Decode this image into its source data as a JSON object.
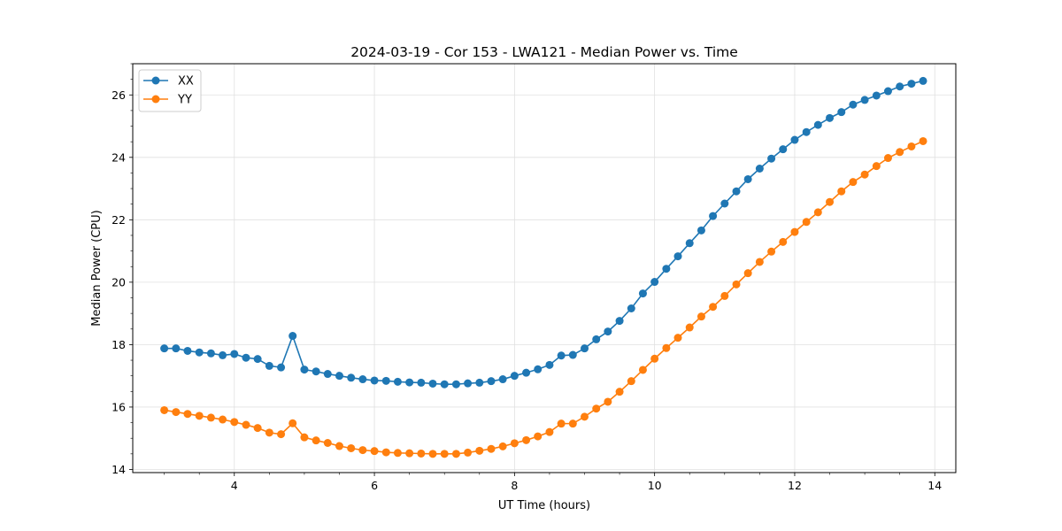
{
  "chart_data": {
    "type": "line",
    "title": "2024-03-19 - Cor 153 - LWA121 - Median Power vs. Time",
    "xlabel": "UT Time (hours)",
    "ylabel": "Median Power (CPU)",
    "xlim": [
      2.55,
      14.3
    ],
    "ylim": [
      13.9,
      27.0
    ],
    "xticks": [
      4,
      6,
      8,
      10,
      12,
      14
    ],
    "yticks": [
      14,
      16,
      18,
      20,
      22,
      24,
      26
    ],
    "grid": true,
    "legend_position": "top-left",
    "x": [
      3.0,
      3.167,
      3.333,
      3.5,
      3.667,
      3.833,
      4.0,
      4.167,
      4.333,
      4.5,
      4.667,
      4.833,
      5.0,
      5.167,
      5.333,
      5.5,
      5.667,
      5.833,
      6.0,
      6.167,
      6.333,
      6.5,
      6.667,
      6.833,
      7.0,
      7.167,
      7.333,
      7.5,
      7.667,
      7.833,
      8.0,
      8.167,
      8.333,
      8.5,
      8.667,
      8.833,
      9.0,
      9.167,
      9.333,
      9.5,
      9.667,
      9.833,
      10.0,
      10.167,
      10.333,
      10.5,
      10.667,
      10.833,
      11.0,
      11.167,
      11.333,
      11.5,
      11.667,
      11.833,
      12.0,
      12.167,
      12.333,
      12.5,
      12.667,
      12.833,
      13.0,
      13.167,
      13.333,
      13.5,
      13.667,
      13.833
    ],
    "series": [
      {
        "name": "XX",
        "color": "#1f77b4",
        "values": [
          17.88,
          17.88,
          17.8,
          17.75,
          17.72,
          17.66,
          17.7,
          17.58,
          17.54,
          17.32,
          17.27,
          18.28,
          17.2,
          17.14,
          17.06,
          17.0,
          16.94,
          16.89,
          16.85,
          16.84,
          16.81,
          16.79,
          16.78,
          16.75,
          16.73,
          16.73,
          16.76,
          16.78,
          16.83,
          16.89,
          17.0,
          17.1,
          17.21,
          17.35,
          17.65,
          17.67,
          17.88,
          18.17,
          18.42,
          18.76,
          19.16,
          19.64,
          20.01,
          20.43,
          20.83,
          21.25,
          21.66,
          22.12,
          22.52,
          22.91,
          23.3,
          23.64,
          23.96,
          24.26,
          24.56,
          24.81,
          25.04,
          25.26,
          25.45,
          25.69,
          25.84,
          25.98,
          26.12,
          26.27,
          26.36,
          26.45
        ]
      },
      {
        "name": "YY",
        "color": "#ff7f0e",
        "values": [
          15.9,
          15.84,
          15.78,
          15.72,
          15.66,
          15.6,
          15.52,
          15.43,
          15.33,
          15.18,
          15.13,
          15.48,
          15.03,
          14.93,
          14.85,
          14.75,
          14.68,
          14.62,
          14.59,
          14.55,
          14.53,
          14.52,
          14.51,
          14.5,
          14.5,
          14.5,
          14.54,
          14.6,
          14.66,
          14.74,
          14.84,
          14.94,
          15.06,
          15.2,
          15.47,
          15.47,
          15.69,
          15.95,
          16.17,
          16.49,
          16.83,
          17.19,
          17.55,
          17.89,
          18.22,
          18.55,
          18.9,
          19.21,
          19.56,
          19.93,
          20.29,
          20.65,
          20.98,
          21.29,
          21.61,
          21.93,
          22.24,
          22.57,
          22.91,
          23.21,
          23.45,
          23.72,
          23.98,
          24.17,
          24.35,
          24.52
        ]
      }
    ]
  }
}
